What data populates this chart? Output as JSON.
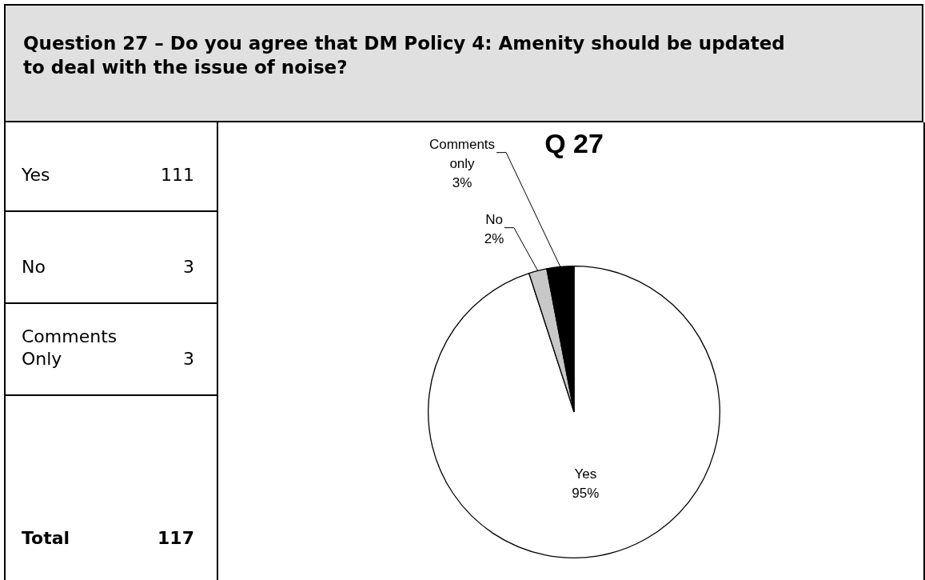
{
  "chart_data": [
    {
      "type": "other",
      "title": "Question 27 – Do you agree that DM Policy 4: Amenity should be updated to deal with the issue of noise?",
      "annotations": [
        "Yes",
        "111",
        "No",
        "3",
        "Comments Only",
        "3",
        "Total",
        "117"
      ]
    },
    {
      "type": "pie",
      "title": "Q 27",
      "categories": [
        "Yes",
        "No",
        "Comments only"
      ],
      "values": [
        95,
        2,
        3
      ],
      "colors": [
        "#ffffff",
        "#c8c8c8",
        "#000000"
      ],
      "value_labels": [
        "95%",
        "2%",
        "3%"
      ],
      "legend": false
    }
  ]
}
